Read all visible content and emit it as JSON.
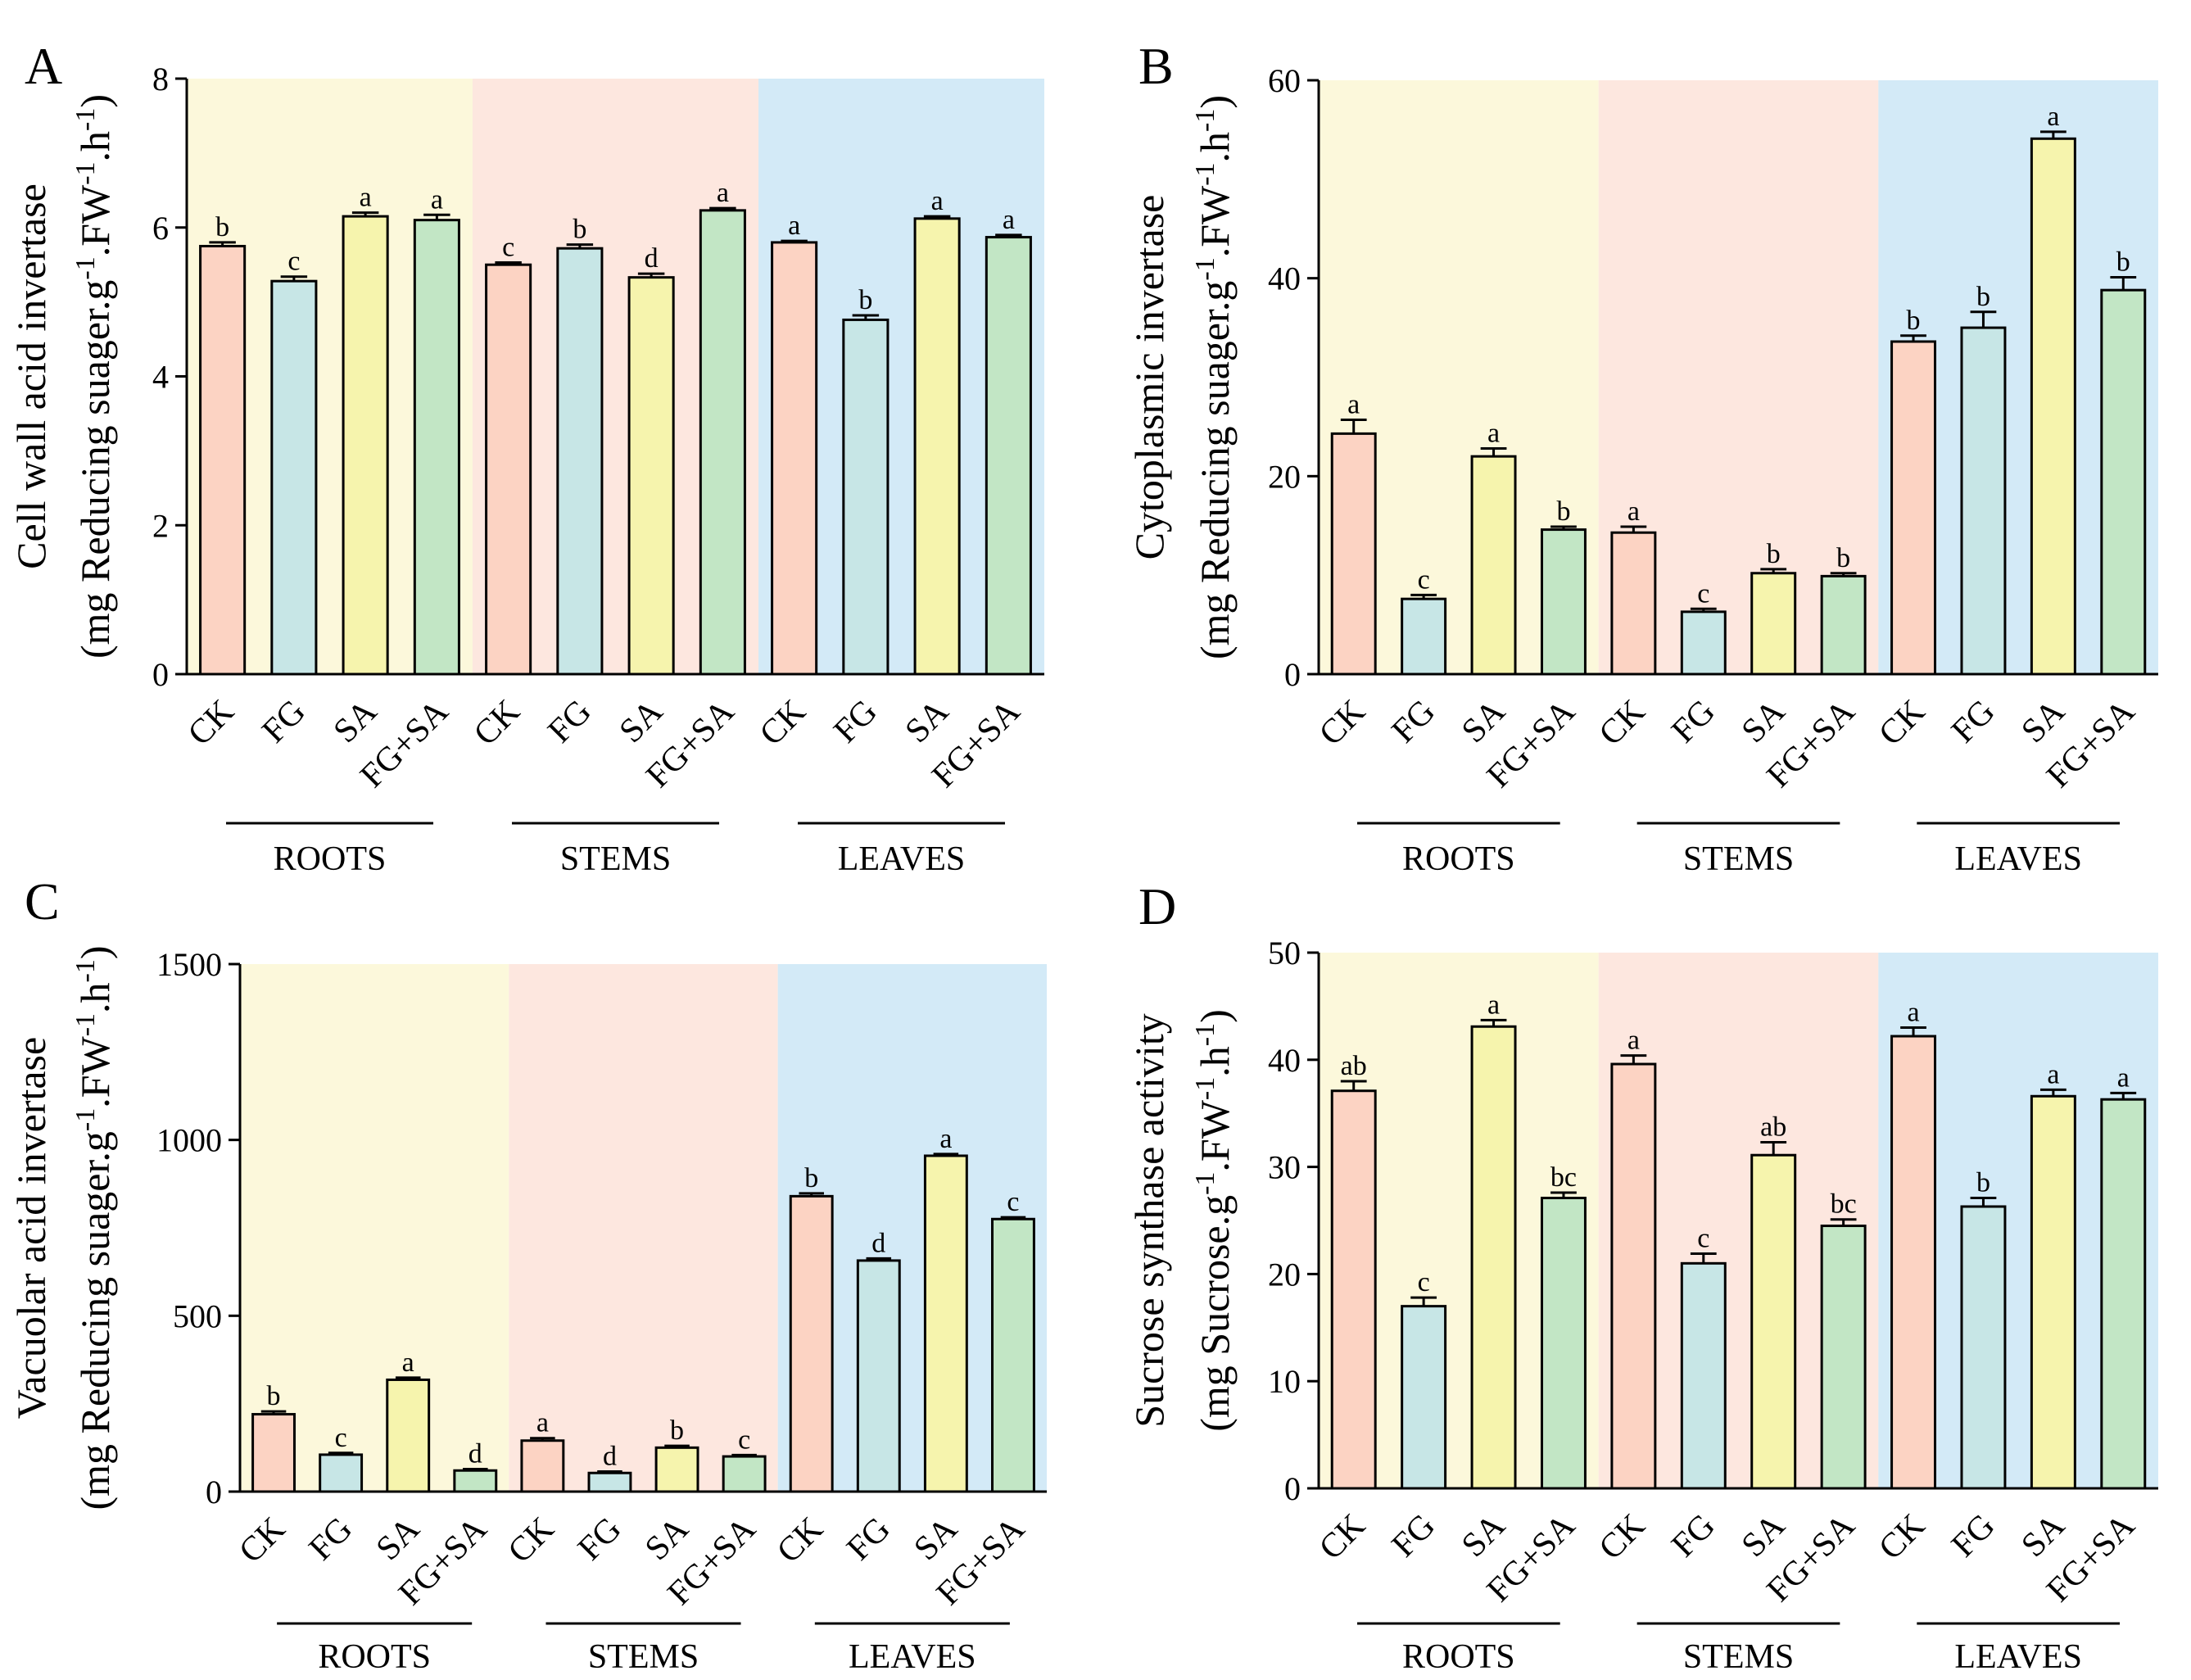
{
  "figure": {
    "treatments": [
      "CK",
      "FG",
      "SA",
      "FG+SA"
    ],
    "organs": [
      "ROOTS",
      "STEMS",
      "LEAVES"
    ],
    "colors": {
      "bg_roots": "#fcf8db",
      "bg_stems": "#fde7df",
      "bg_leaves": "#d3eaf7",
      "CK": "#fcd3c3",
      "FG": "#c7e6e6",
      "SA": "#f6f4ad",
      "FG+SA": "#c2e6c5"
    }
  },
  "chart_data": [
    {
      "panel": "A",
      "type": "bar",
      "ylabel_line1": "Cell wall acid invertase",
      "ylabel_line2": "(mg Reducing suager.g",
      "ylabel_line2b": ".FW",
      "ylabel_line2c": ".h",
      "ylabel_line2d": ")",
      "ylabel_sup": "-1",
      "ylim": [
        0,
        8
      ],
      "yticks": [
        0,
        2,
        4,
        6,
        8
      ],
      "categories": [
        "CK",
        "FG",
        "SA",
        "FG+SA",
        "CK",
        "FG",
        "SA",
        "FG+SA",
        "CK",
        "FG",
        "SA",
        "FG+SA"
      ],
      "values": [
        5.75,
        5.28,
        6.15,
        6.1,
        5.5,
        5.72,
        5.33,
        6.23,
        5.8,
        4.76,
        6.12,
        5.87
      ],
      "errors": [
        0.05,
        0.06,
        0.05,
        0.07,
        0.03,
        0.05,
        0.05,
        0.03,
        0.02,
        0.06,
        0.03,
        0.03
      ],
      "letters": [
        "b",
        "c",
        "a",
        "a",
        "c",
        "b",
        "d",
        "a",
        "a",
        "b",
        "a",
        "a"
      ]
    },
    {
      "panel": "B",
      "type": "bar",
      "ylabel_line1": "Cytoplasmic invertase",
      "ylabel_line2": "(mg Reducing suager.g",
      "ylabel_line2b": ".FW",
      "ylabel_line2c": ".h",
      "ylabel_line2d": ")",
      "ylabel_sup": "-1",
      "ylim": [
        0,
        60
      ],
      "yticks": [
        0,
        20,
        40,
        60
      ],
      "categories": [
        "CK",
        "FG",
        "SA",
        "FG+SA",
        "CK",
        "FG",
        "SA",
        "FG+SA",
        "CK",
        "FG",
        "SA",
        "FG+SA"
      ],
      "values": [
        24.3,
        7.6,
        22.0,
        14.6,
        14.3,
        6.3,
        10.2,
        9.9,
        33.6,
        35.0,
        54.1,
        38.8
      ],
      "errors": [
        1.4,
        0.4,
        0.8,
        0.3,
        0.6,
        0.3,
        0.4,
        0.3,
        0.6,
        1.6,
        0.7,
        1.3
      ],
      "letters": [
        "a",
        "c",
        "a",
        "b",
        "a",
        "c",
        "b",
        "b",
        "b",
        "b",
        "a",
        "b"
      ]
    },
    {
      "panel": "C",
      "type": "bar",
      "ylabel_line1": "Vacuolar acid invertase",
      "ylabel_line2": "(mg Reducing suager.g",
      "ylabel_line2b": ".FW",
      "ylabel_line2c": ".h",
      "ylabel_line2d": ")",
      "ylabel_sup": "-1",
      "ylim": [
        0,
        1500
      ],
      "yticks": [
        0,
        500,
        1000,
        1500
      ],
      "categories": [
        "CK",
        "FG",
        "SA",
        "FG+SA",
        "CK",
        "FG",
        "SA",
        "FG+SA",
        "CK",
        "FG",
        "SA",
        "FG+SA"
      ],
      "values": [
        220,
        105,
        318,
        60,
        145,
        53,
        125,
        100,
        840,
        657,
        955,
        775
      ],
      "errors": [
        8,
        5,
        6,
        4,
        7,
        4,
        5,
        4,
        8,
        6,
        5,
        5
      ],
      "letters": [
        "b",
        "c",
        "a",
        "d",
        "a",
        "d",
        "b",
        "c",
        "b",
        "d",
        "a",
        "c"
      ]
    },
    {
      "panel": "D",
      "type": "bar",
      "ylabel_line1": "Sucrose synthase activity",
      "ylabel_line2": "(mg Sucrose.g",
      "ylabel_line2b": ".FW",
      "ylabel_line2c": ".h",
      "ylabel_line2d": ")",
      "ylabel_sup": "-1",
      "ylim": [
        0,
        50
      ],
      "yticks": [
        0,
        10,
        20,
        30,
        40,
        50
      ],
      "categories": [
        "CK",
        "FG",
        "SA",
        "FG+SA",
        "CK",
        "FG",
        "SA",
        "FG+SA",
        "CK",
        "FG",
        "SA",
        "FG+SA"
      ],
      "values": [
        37.1,
        17.0,
        43.1,
        27.1,
        39.6,
        21.0,
        31.1,
        24.5,
        42.2,
        26.3,
        36.6,
        36.3
      ],
      "errors": [
        0.9,
        0.8,
        0.6,
        0.5,
        0.8,
        0.9,
        1.2,
        0.6,
        0.8,
        0.8,
        0.6,
        0.6
      ],
      "letters": [
        "ab",
        "c",
        "a",
        "bc",
        "a",
        "c",
        "ab",
        "bc",
        "a",
        "b",
        "a",
        "a"
      ]
    }
  ]
}
